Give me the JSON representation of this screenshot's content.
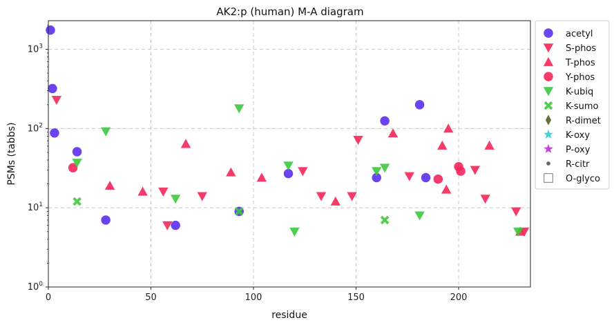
{
  "chart_data": {
    "type": "scatter",
    "title": "AK2:p (human) M-A diagram",
    "xlabel": "residue",
    "ylabel": "PSMs (tabbs)",
    "xlim": [
      0,
      235
    ],
    "ylim": [
      1,
      2300
    ],
    "yscale": "log",
    "grid": true,
    "legend_position": "outside-right",
    "x_ticks": [
      0,
      50,
      100,
      150,
      200
    ],
    "y_ticks": [
      {
        "value": 1,
        "base": "10",
        "exp": "0"
      },
      {
        "value": 10,
        "base": "10",
        "exp": "1"
      },
      {
        "value": 100,
        "base": "10",
        "exp": "2"
      },
      {
        "value": 1000,
        "base": "10",
        "exp": "3"
      }
    ],
    "series": [
      {
        "name": "acetyl",
        "marker": "circle",
        "color": "#5b2ff0",
        "points": [
          [
            1,
            1750
          ],
          [
            2,
            320
          ],
          [
            3,
            88
          ],
          [
            14,
            51
          ],
          [
            28,
            7
          ],
          [
            62,
            6
          ],
          [
            93,
            9
          ],
          [
            117,
            27
          ],
          [
            160,
            24
          ],
          [
            164,
            125
          ],
          [
            181,
            200
          ],
          [
            184,
            24
          ]
        ]
      },
      {
        "name": "S-phos",
        "marker": "triangle-down",
        "color": "#f3265a",
        "points": [
          [
            4,
            230
          ],
          [
            56,
            16
          ],
          [
            58,
            6
          ],
          [
            75,
            14
          ],
          [
            124,
            29
          ],
          [
            133,
            14
          ],
          [
            148,
            14
          ],
          [
            151,
            72
          ],
          [
            176,
            25
          ],
          [
            208,
            30
          ],
          [
            213,
            13
          ],
          [
            228,
            9
          ],
          [
            232,
            5
          ]
        ]
      },
      {
        "name": "T-phos",
        "marker": "triangle-up",
        "color": "#f3265a",
        "points": [
          [
            30,
            19
          ],
          [
            46,
            16
          ],
          [
            67,
            64
          ],
          [
            89,
            28
          ],
          [
            104,
            24
          ],
          [
            140,
            12
          ],
          [
            168,
            87
          ],
          [
            192,
            61
          ],
          [
            194,
            17
          ],
          [
            195,
            100
          ],
          [
            215,
            61
          ],
          [
            230,
            5
          ]
        ]
      },
      {
        "name": "Y-phos",
        "marker": "circle",
        "color": "#f3265a",
        "points": [
          [
            12,
            32
          ],
          [
            190,
            23
          ],
          [
            200,
            33
          ],
          [
            201,
            29
          ]
        ]
      },
      {
        "name": "K-ubiq",
        "marker": "triangle-down",
        "color": "#3ec93e",
        "points": [
          [
            14,
            37
          ],
          [
            28,
            92
          ],
          [
            62,
            13
          ],
          [
            93,
            180
          ],
          [
            117,
            34
          ],
          [
            120,
            5
          ],
          [
            160,
            29
          ],
          [
            164,
            32
          ],
          [
            181,
            8
          ],
          [
            229,
            5
          ]
        ]
      },
      {
        "name": "K-sumo",
        "marker": "x",
        "color": "#3ec93e",
        "points": [
          [
            14,
            12
          ],
          [
            93,
            9
          ],
          [
            164,
            7
          ]
        ]
      },
      {
        "name": "R-dimet",
        "marker": "diamond",
        "color": "#6b6b3a",
        "points": []
      },
      {
        "name": "K-oxy",
        "marker": "star",
        "color": "#3fd0d8",
        "points": []
      },
      {
        "name": "P-oxy",
        "marker": "star",
        "color": "#c443d8",
        "points": []
      },
      {
        "name": "R-citr",
        "marker": "dot",
        "color": "#666666",
        "points": []
      },
      {
        "name": "O-glyco",
        "marker": "square-open",
        "color": "#777777",
        "points": []
      }
    ]
  }
}
